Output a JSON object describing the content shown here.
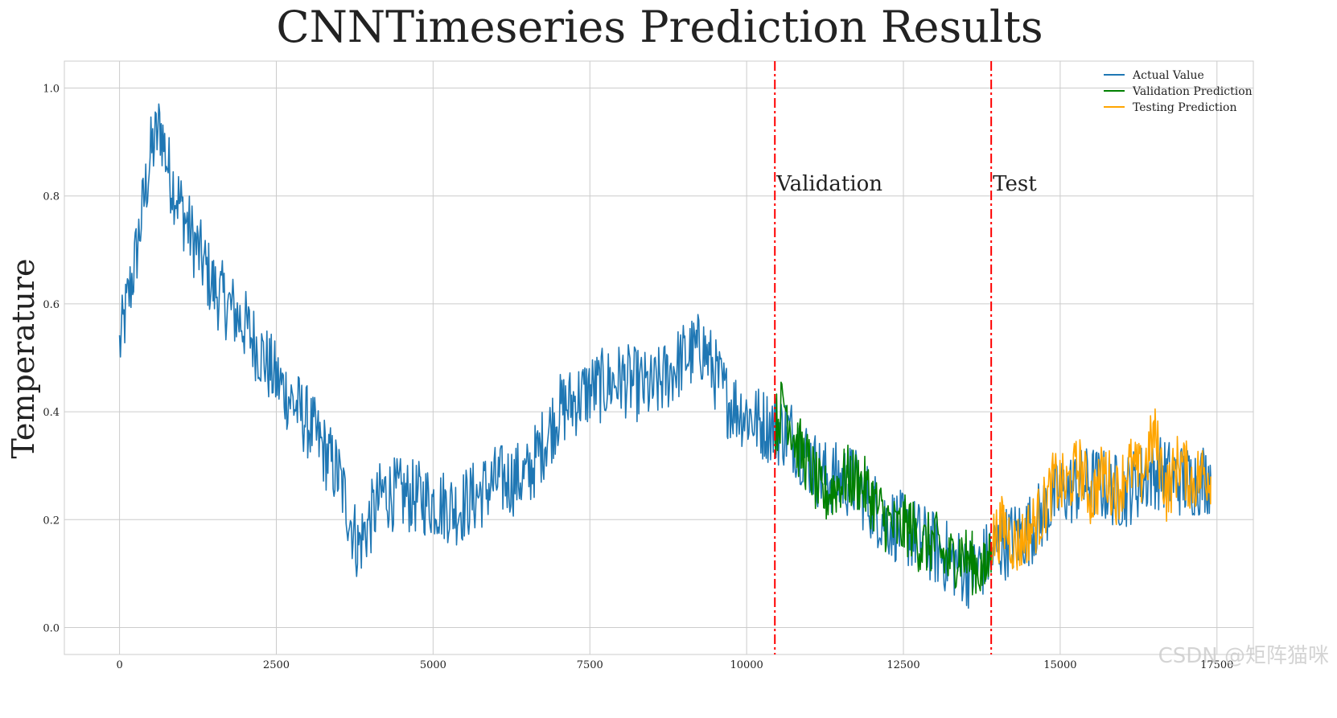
{
  "chart_data": {
    "type": "line",
    "title": "CNNTimeseries Prediction Results",
    "xlabel": "",
    "ylabel": "Temperature",
    "xlim": [
      -880,
      18080
    ],
    "ylim": [
      -0.05,
      1.05
    ],
    "x_ticks": [
      0,
      2500,
      5000,
      7500,
      10000,
      12500,
      15000,
      17500
    ],
    "y_ticks": [
      0.0,
      0.2,
      0.4,
      0.6,
      0.8,
      1.0
    ],
    "grid": true,
    "legend_position": "top-right",
    "series": [
      {
        "name": "Actual Value",
        "color": "#1f77b4",
        "x": [
          0,
          250,
          500,
          650,
          800,
          1100,
          1500,
          2000,
          2500,
          3000,
          3500,
          3800,
          4200,
          4800,
          5400,
          6000,
          6500,
          7000,
          7500,
          8000,
          8500,
          9000,
          9300,
          9700,
          10200,
          10700,
          11200,
          11700,
          12200,
          12700,
          13200,
          13600,
          14000,
          14500,
          15000,
          15500,
          16000,
          16500,
          17000,
          17400
        ],
        "y": [
          0.52,
          0.68,
          0.88,
          0.93,
          0.84,
          0.74,
          0.63,
          0.56,
          0.46,
          0.38,
          0.28,
          0.15,
          0.25,
          0.24,
          0.22,
          0.27,
          0.28,
          0.4,
          0.44,
          0.46,
          0.44,
          0.5,
          0.52,
          0.42,
          0.38,
          0.36,
          0.28,
          0.27,
          0.2,
          0.17,
          0.13,
          0.1,
          0.15,
          0.18,
          0.25,
          0.27,
          0.25,
          0.29,
          0.27,
          0.28
        ]
      },
      {
        "name": "Validation Prediction",
        "color": "#008000",
        "x": [
          10450,
          10600,
          10800,
          11000,
          11200,
          11400,
          11600,
          11800,
          12000,
          12200,
          12400,
          12600,
          12800,
          13000,
          13200,
          13400,
          13600,
          13800,
          13900
        ],
        "y": [
          0.37,
          0.42,
          0.34,
          0.3,
          0.24,
          0.26,
          0.28,
          0.27,
          0.24,
          0.2,
          0.18,
          0.19,
          0.15,
          0.16,
          0.12,
          0.14,
          0.12,
          0.1,
          0.15
        ]
      },
      {
        "name": "Testing Prediction",
        "color": "#ffa500",
        "x": [
          13900,
          14100,
          14300,
          14500,
          14700,
          14900,
          15100,
          15300,
          15500,
          15700,
          15900,
          16100,
          16300,
          16500,
          16700,
          16900,
          17100,
          17300,
          17400
        ],
        "y": [
          0.16,
          0.19,
          0.15,
          0.18,
          0.21,
          0.27,
          0.26,
          0.3,
          0.24,
          0.29,
          0.25,
          0.3,
          0.28,
          0.36,
          0.25,
          0.31,
          0.27,
          0.29,
          0.28
        ]
      }
    ],
    "annotations": [
      {
        "text": "Validation",
        "x": 10450,
        "y": 0.81
      },
      {
        "text": "Test",
        "x": 13900,
        "y": 0.81
      }
    ],
    "vlines": [
      {
        "x": 10450,
        "color": "#ff0000",
        "style": "dashdot"
      },
      {
        "x": 13900,
        "color": "#ff0000",
        "style": "dashdot"
      }
    ]
  },
  "watermark": "CSDN @矩阵猫咪"
}
